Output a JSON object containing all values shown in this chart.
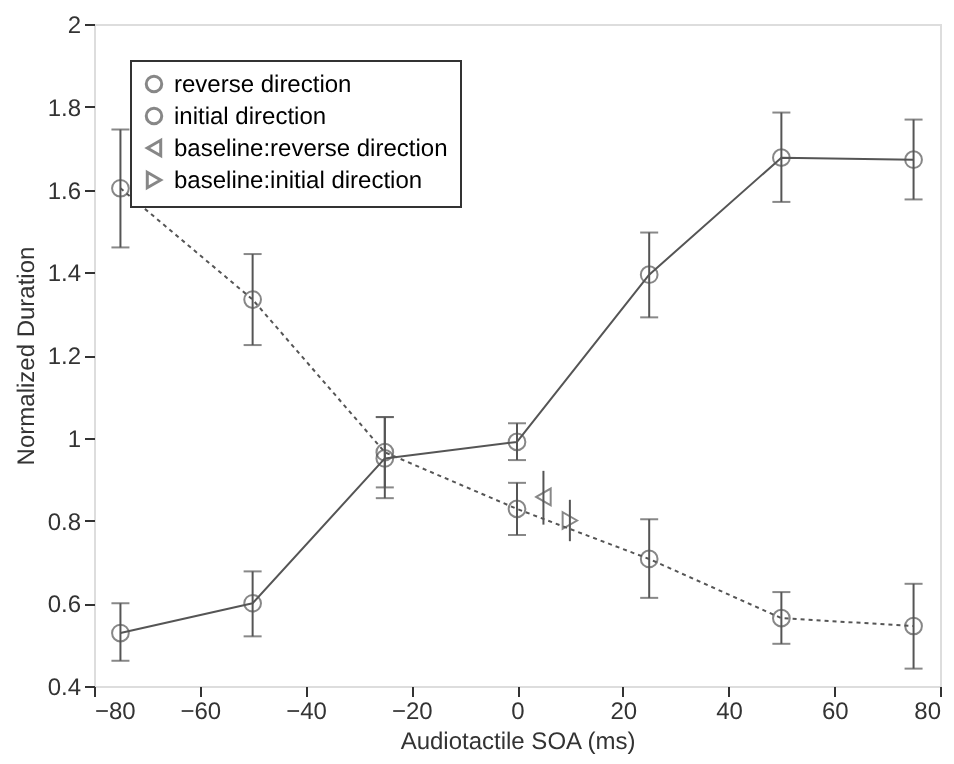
{
  "chart_data": {
    "type": "line",
    "xlabel": "Audiotactile SOA (ms)",
    "ylabel": "Normalized Duration",
    "xlim": [
      -80,
      80
    ],
    "xticks": [
      -80,
      -60,
      -40,
      -20,
      0,
      20,
      40,
      60,
      80
    ],
    "ylim": [
      0.4,
      2
    ],
    "yticks": [
      0.4,
      0.6,
      0.8,
      1,
      1.2,
      1.4,
      1.6,
      1.8,
      2
    ],
    "grid": false,
    "legend": "top left",
    "series": [
      {
        "name": "reverse direction",
        "color": "#555555",
        "marker": "circle",
        "line_style": "dotted",
        "x": [
          -75,
          -50,
          -25,
          0,
          25,
          50,
          75
        ],
        "values": [
          1.603,
          1.334,
          0.965,
          0.828,
          0.707,
          0.564,
          0.545
        ],
        "errors": [
          [
            1.46,
            1.745
          ],
          [
            1.224,
            1.444
          ],
          [
            0.88,
            1.05
          ],
          [
            0.765,
            0.891
          ],
          [
            0.613,
            0.803
          ],
          [
            0.502,
            0.627
          ],
          [
            0.442,
            0.647
          ]
        ]
      },
      {
        "name": "initial direction",
        "color": "#555555",
        "marker": "circle",
        "line_style": "solid",
        "x": [
          -75,
          -50,
          -25,
          0,
          25,
          50,
          75
        ],
        "values": [
          0.528,
          0.6,
          0.95,
          0.99,
          1.394,
          1.677,
          1.672
        ],
        "errors": [
          [
            0.461,
            0.6
          ],
          [
            0.52,
            0.677
          ],
          [
            0.854,
            1.05
          ],
          [
            0.946,
            1.035
          ],
          [
            1.291,
            1.496
          ],
          [
            1.57,
            1.786
          ],
          [
            1.576,
            1.769
          ]
        ]
      },
      {
        "name": "baseline:reverse direction",
        "type": "scatter",
        "color": "#555555",
        "marker": "triangle-left",
        "x": [
          5
        ],
        "values": [
          0.857
        ],
        "errors": [
          [
            0.79,
            0.92
          ]
        ]
      },
      {
        "name": "baseline:initial direction",
        "type": "scatter",
        "color": "#555555",
        "marker": "triangle-right",
        "x": [
          10
        ],
        "values": [
          0.8
        ],
        "errors": [
          [
            0.75,
            0.85
          ]
        ]
      }
    ]
  }
}
